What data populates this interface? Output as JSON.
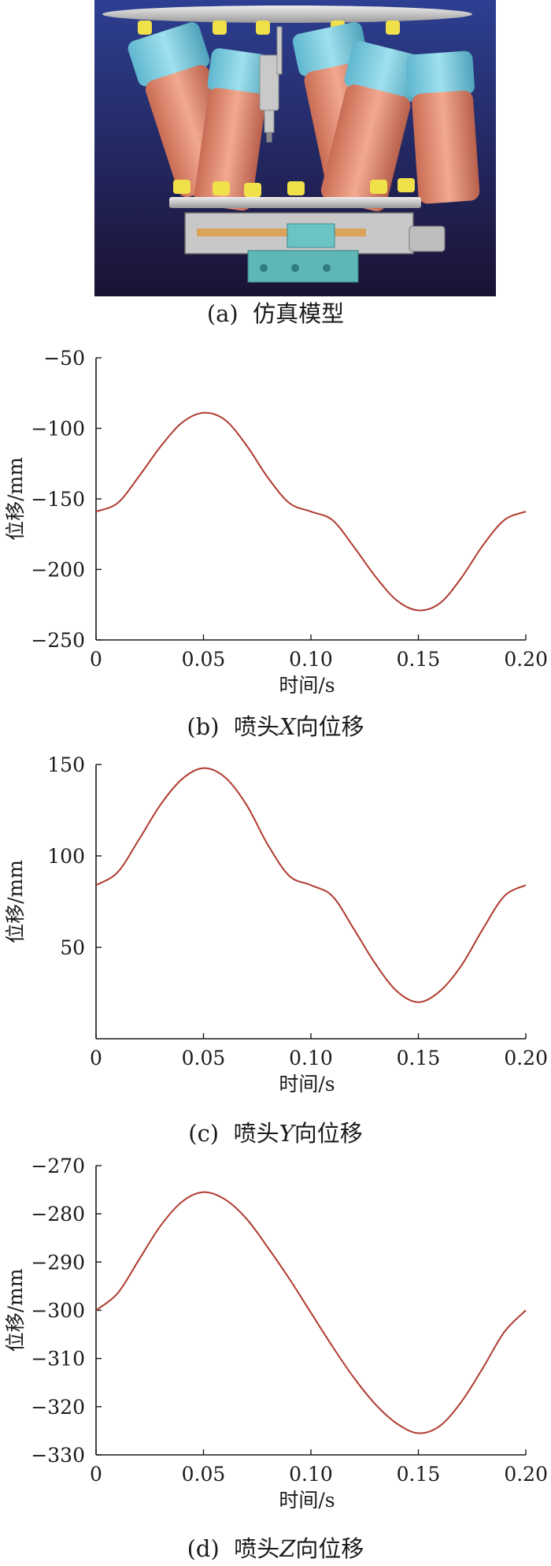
{
  "model": {
    "caption_prefix": "(a)",
    "caption_text": "仿真模型"
  },
  "chart_data": [
    {
      "type": "line",
      "caption_prefix": "(b)",
      "caption_pre": "喷头",
      "caption_axis": "X",
      "caption_post": "向位移",
      "xlabel": "时间/s",
      "ylabel": "位移/mm",
      "xlim": [
        0,
        0.2
      ],
      "ylim": [
        -250,
        -50
      ],
      "xticks": [
        0,
        0.05,
        0.1,
        0.15,
        0.2
      ],
      "xtick_labels": [
        "0",
        "0.05",
        "0.10",
        "0.15",
        "0.20"
      ],
      "yticks": [
        -50,
        -100,
        -150,
        -200,
        -250
      ],
      "ytick_labels": [
        "−50",
        "−100",
        "−150",
        "−200",
        "−250"
      ],
      "color": "#b03a2e",
      "series": [
        {
          "x": [
            0,
            0.01,
            0.02,
            0.03,
            0.04,
            0.05,
            0.06,
            0.07,
            0.08,
            0.09,
            0.1,
            0.11,
            0.12,
            0.13,
            0.14,
            0.15,
            0.16,
            0.17,
            0.18,
            0.19,
            0.2
          ],
          "values": [
            -159,
            -153,
            -134,
            -113,
            -96,
            -89,
            -94,
            -112,
            -135,
            -153,
            -159,
            -165,
            -184,
            -205,
            -222,
            -229,
            -224,
            -206,
            -183,
            -165,
            -159
          ]
        }
      ]
    },
    {
      "type": "line",
      "caption_prefix": "(c)",
      "caption_pre": "喷头",
      "caption_axis": "Y",
      "caption_post": "向位移",
      "xlabel": "时间/s",
      "ylabel": "位移/mm",
      "xlim": [
        0,
        0.2
      ],
      "ylim": [
        0,
        150
      ],
      "xticks": [
        0,
        0.05,
        0.1,
        0.15,
        0.2
      ],
      "xtick_labels": [
        "0",
        "0.05",
        "0.10",
        "0.15",
        "0.20"
      ],
      "yticks": [
        150,
        100,
        50
      ],
      "ytick_labels": [
        "150",
        "100",
        "50"
      ],
      "color": "#b03a2e",
      "series": [
        {
          "x": [
            0,
            0.01,
            0.02,
            0.03,
            0.04,
            0.05,
            0.06,
            0.07,
            0.08,
            0.09,
            0.1,
            0.11,
            0.12,
            0.13,
            0.14,
            0.15,
            0.16,
            0.17,
            0.18,
            0.19,
            0.2
          ],
          "values": [
            84,
            91,
            109,
            128,
            142,
            148,
            143,
            128,
            106,
            89,
            84,
            78,
            60,
            41,
            26,
            20,
            26,
            40,
            60,
            78,
            84
          ]
        }
      ]
    },
    {
      "type": "line",
      "caption_prefix": "(d)",
      "caption_pre": "喷头",
      "caption_axis": "Z",
      "caption_post": "向位移",
      "xlabel": "时间/s",
      "ylabel": "位移/mm",
      "xlim": [
        0,
        0.2
      ],
      "ylim": [
        -330,
        -270
      ],
      "xticks": [
        0,
        0.05,
        0.1,
        0.15,
        0.2
      ],
      "xtick_labels": [
        "0",
        "0.05",
        "0.10",
        "0.15",
        "0.20"
      ],
      "yticks": [
        -270,
        -280,
        -290,
        -300,
        -310,
        -320,
        -330
      ],
      "ytick_labels": [
        "−270",
        "−280",
        "−290",
        "−300",
        "−310",
        "−320",
        "−330"
      ],
      "color": "#b03a2e",
      "series": [
        {
          "x": [
            0,
            0.01,
            0.02,
            0.03,
            0.04,
            0.05,
            0.06,
            0.07,
            0.08,
            0.09,
            0.1,
            0.11,
            0.12,
            0.13,
            0.14,
            0.15,
            0.16,
            0.17,
            0.18,
            0.19,
            0.2
          ],
          "values": [
            -300,
            -296.5,
            -289.5,
            -282.5,
            -277.5,
            -275.5,
            -277,
            -281,
            -287,
            -293.5,
            -300.5,
            -307.5,
            -314,
            -319.5,
            -323.5,
            -325.5,
            -324,
            -319,
            -312,
            -304.5,
            -300
          ]
        }
      ]
    }
  ]
}
